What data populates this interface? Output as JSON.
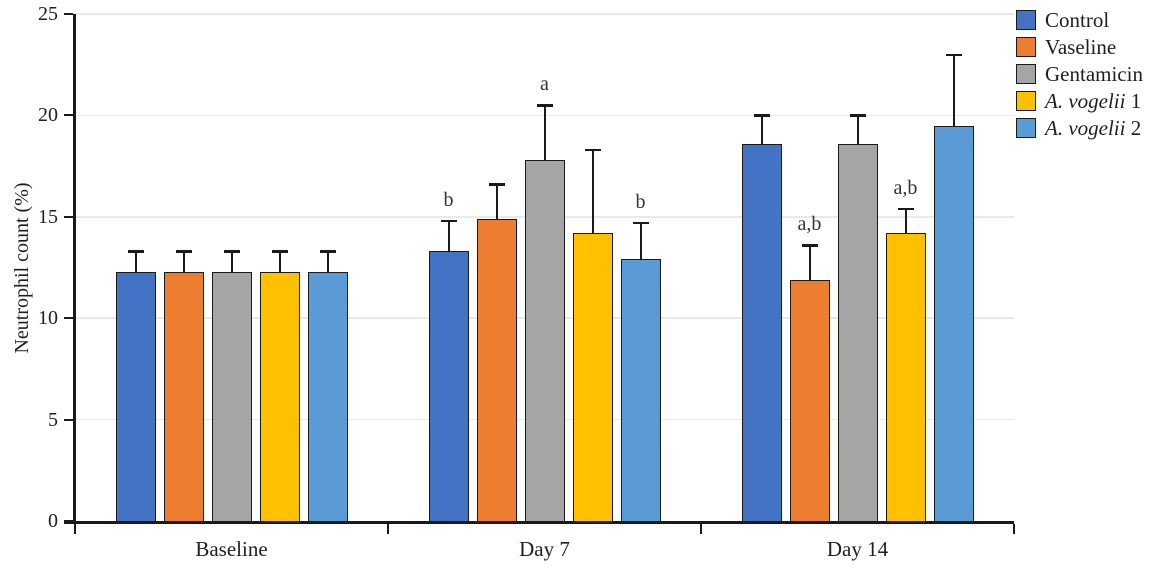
{
  "chart_data": {
    "type": "bar",
    "title": "",
    "xlabel": "",
    "ylabel": "Neutrophil count (%)",
    "ylim": [
      0,
      25
    ],
    "yticks": [
      0,
      5,
      10,
      15,
      20,
      25
    ],
    "grid": true,
    "legend_position": "top-right",
    "categories": [
      "Baseline",
      "Day 7",
      "Day 14"
    ],
    "series": [
      {
        "name": "Control",
        "name_parts": [
          {
            "text": "Control",
            "italic": false
          }
        ],
        "color": "#4472C4",
        "values": [
          12.3,
          13.3,
          18.6
        ],
        "errors_upper": [
          1.0,
          1.5,
          1.4
        ],
        "sig_labels": [
          "",
          "b",
          ""
        ]
      },
      {
        "name": "Vaseline",
        "name_parts": [
          {
            "text": "Vaseline",
            "italic": false
          }
        ],
        "color": "#ED7D31",
        "values": [
          12.3,
          14.9,
          11.9
        ],
        "errors_upper": [
          1.0,
          1.7,
          1.7
        ],
        "sig_labels": [
          "",
          "",
          "a,b"
        ]
      },
      {
        "name": "Gentamicin",
        "name_parts": [
          {
            "text": "Gentamicin",
            "italic": false
          }
        ],
        "color": "#A5A5A5",
        "values": [
          12.3,
          17.8,
          18.6
        ],
        "errors_upper": [
          1.0,
          2.7,
          1.4
        ],
        "sig_labels": [
          "",
          "a",
          ""
        ]
      },
      {
        "name": "A. vogelii 1",
        "name_parts": [
          {
            "text": "A. vogelii",
            "italic": true
          },
          {
            "text": " 1",
            "italic": false
          }
        ],
        "color": "#FFC000",
        "values": [
          12.3,
          14.2,
          14.2
        ],
        "errors_upper": [
          1.0,
          4.1,
          1.2
        ],
        "sig_labels": [
          "",
          "",
          "a,b"
        ]
      },
      {
        "name": "A. vogelii 2",
        "name_parts": [
          {
            "text": "A. vogelii",
            "italic": true
          },
          {
            "text": " 2",
            "italic": false
          }
        ],
        "color": "#5B9BD5",
        "values": [
          12.3,
          12.9,
          19.5
        ],
        "errors_upper": [
          1.0,
          1.8,
          3.5
        ],
        "sig_labels": [
          "",
          "b",
          ""
        ]
      }
    ],
    "colors": {
      "bar_border": "#1a1a1a",
      "gridline": "#e9e9e9",
      "axis": "#1a1a1a",
      "text": "#1f1f1f",
      "sig_label_text": "#333333"
    }
  }
}
